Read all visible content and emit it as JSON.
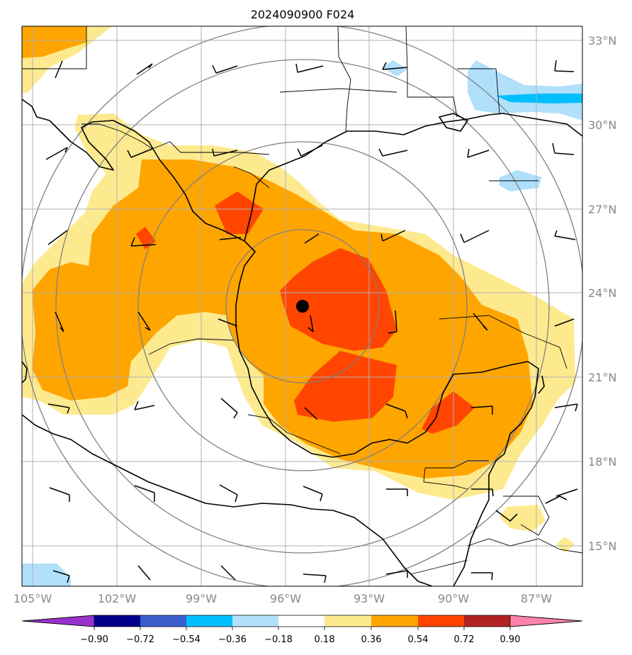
{
  "title": "2024090900 F024",
  "lon_labels": [
    "105°W",
    "102°W",
    "99°W",
    "96°W",
    "93°W",
    "90°W",
    "87°W"
  ],
  "lat_labels": [
    "33°N",
    "30°N",
    "27°N",
    "24°N",
    "21°N",
    "18°N",
    "15°N"
  ],
  "colorbar": {
    "levels": [
      "−0.90",
      "−0.72",
      "−0.54",
      "−0.36",
      "−0.18",
      "0.18",
      "0.36",
      "0.54",
      "0.72",
      "0.90"
    ],
    "colors": [
      "#9932cc",
      "#00008b",
      "#3a5fcd",
      "#00bfff",
      "#b0e0fa",
      "#ffffff",
      "#fdea8f",
      "#ffa500",
      "#ff4500",
      "#b22222",
      "#ff82ab"
    ]
  },
  "storm_center": {
    "lon": -95.3,
    "lat": 23.5
  },
  "range_rings": 4
}
